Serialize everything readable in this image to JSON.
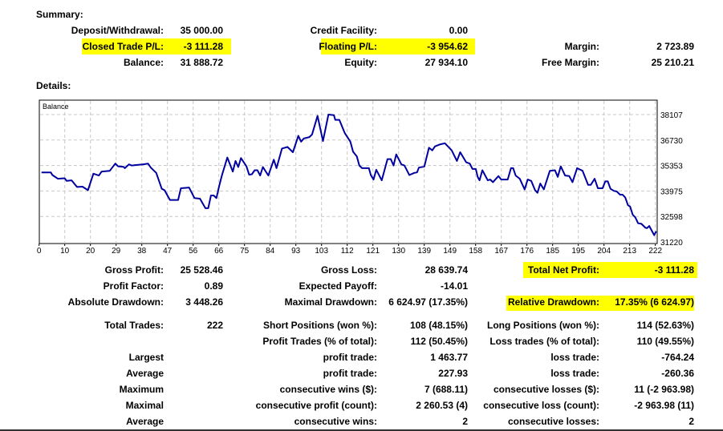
{
  "summary": {
    "title": "Summary:",
    "deposit_label": "Deposit/Withdrawal:",
    "deposit_value": "35 000.00",
    "closed_pl_label": "Closed Trade P/L:",
    "closed_pl_value": "-3 111.28",
    "balance_label": "Balance:",
    "balance_value": "31 888.72",
    "credit_label": "Credit Facility:",
    "credit_value": "0.00",
    "floating_label": "Floating P/L:",
    "floating_value": "-3 954.62",
    "equity_label": "Equity:",
    "equity_value": "27 934.10",
    "margin_label": "Margin:",
    "margin_value": "2 723.89",
    "free_margin_label": "Free Margin:",
    "free_margin_value": "25 210.21"
  },
  "details": {
    "title": "Details:",
    "rows": [
      [
        "Gross Profit:",
        "25 528.46",
        "Gross Loss:",
        "28 639.74",
        "Total Net Profit:",
        "-3 111.28"
      ],
      [
        "Profit Factor:",
        "0.89",
        "Expected Payoff:",
        "-14.01",
        "",
        ""
      ],
      [
        "Absolute Drawdown:",
        "3 448.26",
        "Maximal Drawdown:",
        "6 624.97 (17.35%)",
        "Relative Drawdown:",
        "17.35% (6 624.97)"
      ],
      [
        "Total Trades:",
        "222",
        "Short Positions (won %):",
        "108 (48.15%)",
        "Long Positions (won %):",
        "114 (52.63%)"
      ],
      [
        "",
        "",
        "Profit Trades (% of total):",
        "112 (50.45%)",
        "Loss trades (% of total):",
        "110 (49.55%)"
      ],
      [
        "Largest",
        "",
        "profit trade:",
        "1 463.77",
        "loss trade:",
        "-764.24"
      ],
      [
        "Average",
        "",
        "profit trade:",
        "227.93",
        "loss trade:",
        "-260.36"
      ],
      [
        "Maximum",
        "",
        "consecutive wins ($):",
        "7 (688.11)",
        "consecutive losses ($):",
        "11 (-2 963.98)"
      ],
      [
        "Maximal",
        "",
        "consecutive profit (count):",
        "2 260.53 (4)",
        "consecutive loss (count):",
        "-2 963.98 (11)"
      ],
      [
        "Average",
        "",
        "consecutive wins:",
        "2",
        "consecutive losses:",
        "2"
      ]
    ]
  },
  "colors": {
    "highlight": "#ffff00",
    "line": "#0000a0",
    "grid": "#c8c8c8"
  },
  "chart_data": {
    "type": "line",
    "title": "Balance",
    "xlabel": "",
    "ylabel": "",
    "xlim": [
      0,
      225
    ],
    "ylim": [
      31220,
      38107
    ],
    "grid": true,
    "x_ticks": [
      "0",
      "10",
      "20",
      "29",
      "38",
      "47",
      "56",
      "66",
      "75",
      "84",
      "93",
      "103",
      "112",
      "121",
      "130",
      "139",
      "149",
      "158",
      "167",
      "176",
      "185",
      "195",
      "204",
      "213",
      "222"
    ],
    "y_ticks": [
      "38107",
      "36730",
      "35353",
      "33975",
      "32598",
      "31220"
    ],
    "series": [
      {
        "name": "Balance",
        "points": [
          [
            0,
            34981
          ],
          [
            3.4,
            34981
          ],
          [
            4,
            34838
          ],
          [
            6,
            34637
          ],
          [
            8.5,
            34665
          ],
          [
            9.2,
            34522
          ],
          [
            11,
            34551
          ],
          [
            13,
            34192
          ],
          [
            15,
            34207
          ],
          [
            17,
            34020
          ],
          [
            19,
            34909
          ],
          [
            21,
            34809
          ],
          [
            22,
            35024
          ],
          [
            25,
            35067
          ],
          [
            27,
            35454
          ],
          [
            28,
            35311
          ],
          [
            30,
            35282
          ],
          [
            30.5,
            35210
          ],
          [
            32,
            35411
          ],
          [
            33,
            35354
          ],
          [
            35,
            35383
          ],
          [
            37,
            35411
          ],
          [
            39,
            35454
          ],
          [
            40,
            35239
          ],
          [
            42,
            34952
          ],
          [
            44,
            34092
          ],
          [
            45,
            34020
          ],
          [
            47,
            33489
          ],
          [
            50,
            33489
          ],
          [
            51,
            34120
          ],
          [
            54,
            34163
          ],
          [
            56,
            33590
          ],
          [
            58,
            33561
          ],
          [
            60,
            33045
          ],
          [
            61,
            33045
          ],
          [
            62,
            33733
          ],
          [
            63,
            33733
          ],
          [
            64,
            33590
          ],
          [
            65,
            34235
          ],
          [
            66,
            34809
          ],
          [
            68,
            35784
          ],
          [
            70,
            35024
          ],
          [
            71,
            35597
          ],
          [
            72,
            35268
          ],
          [
            73,
            35755
          ],
          [
            75,
            35311
          ],
          [
            76,
            34852
          ],
          [
            77,
            34880
          ],
          [
            78,
            35096
          ],
          [
            79,
            35096
          ],
          [
            80,
            34809
          ],
          [
            81,
            35268
          ],
          [
            83,
            34809
          ],
          [
            85,
            35669
          ],
          [
            86,
            35210
          ],
          [
            88,
            36271
          ],
          [
            90,
            36357
          ],
          [
            92,
            36071
          ],
          [
            94,
            36960
          ],
          [
            95,
            36644
          ],
          [
            96,
            36816
          ],
          [
            98,
            36888
          ],
          [
            99,
            37031
          ],
          [
            101,
            38035
          ],
          [
            103,
            36673
          ],
          [
            105,
            38107
          ],
          [
            107,
            38078
          ],
          [
            107.5,
            37820
          ],
          [
            109,
            37820
          ],
          [
            111,
            37103
          ],
          [
            113,
            36644
          ],
          [
            114,
            36099
          ],
          [
            115.4,
            35841
          ],
          [
            116.3,
            35354
          ],
          [
            117.3,
            35210
          ],
          [
            119.8,
            35210
          ],
          [
            120.5,
            34838
          ],
          [
            121.5,
            34594
          ],
          [
            122.5,
            35124
          ],
          [
            124.5,
            34551
          ],
          [
            126.6,
            35698
          ],
          [
            127.8,
            35698
          ],
          [
            128.8,
            35354
          ],
          [
            129.8,
            35956
          ],
          [
            131.7,
            35411
          ],
          [
            132.8,
            35354
          ],
          [
            134.6,
            34838
          ],
          [
            136.4,
            34952
          ],
          [
            137.4,
            34981
          ],
          [
            138.1,
            35239
          ],
          [
            140.1,
            35296
          ],
          [
            141.8,
            36315
          ],
          [
            143,
            36171
          ],
          [
            144,
            36386
          ],
          [
            145.7,
            36487
          ],
          [
            147.6,
            36558
          ],
          [
            150.1,
            36171
          ],
          [
            152,
            35597
          ],
          [
            153.2,
            36071
          ],
          [
            155.4,
            35526
          ],
          [
            156.7,
            35454
          ],
          [
            157.7,
            35167
          ],
          [
            158.9,
            35167
          ],
          [
            159.6,
            34737
          ],
          [
            160.3,
            34551
          ],
          [
            161.3,
            35096
          ],
          [
            163.3,
            34551
          ],
          [
            164.2,
            34594
          ],
          [
            165.2,
            34450
          ],
          [
            167.2,
            34780
          ],
          [
            168.2,
            34594
          ],
          [
            170.6,
            34594
          ],
          [
            171.8,
            35210
          ],
          [
            172.6,
            35210
          ],
          [
            173.5,
            34809
          ],
          [
            175,
            34637
          ],
          [
            176.8,
            34063
          ],
          [
            177.9,
            34594
          ],
          [
            179.2,
            34522
          ],
          [
            180.6,
            34020
          ],
          [
            181.5,
            33877
          ],
          [
            182.5,
            34379
          ],
          [
            183.8,
            34063
          ],
          [
            186,
            35067
          ],
          [
            187.9,
            35096
          ],
          [
            188.9,
            34737
          ],
          [
            190,
            35311
          ],
          [
            191.6,
            34809
          ],
          [
            193.1,
            34780
          ],
          [
            194.3,
            34450
          ],
          [
            196,
            35210
          ],
          [
            198,
            35067
          ],
          [
            200,
            34307
          ],
          [
            201,
            34307
          ],
          [
            202.4,
            34637
          ],
          [
            203.6,
            34120
          ],
          [
            205.3,
            34120
          ],
          [
            206.3,
            34493
          ],
          [
            207.2,
            34493
          ],
          [
            208.2,
            34092
          ],
          [
            209.5,
            33977
          ],
          [
            210.5,
            33948
          ],
          [
            211.7,
            33776
          ],
          [
            212.6,
            33776
          ],
          [
            213.6,
            33618
          ],
          [
            214.6,
            33203
          ],
          [
            215.4,
            33131
          ],
          [
            216.3,
            32701
          ],
          [
            217.3,
            32543
          ],
          [
            218.3,
            32228
          ],
          [
            219.5,
            32199
          ],
          [
            221,
            31984
          ],
          [
            221.6,
            31970
          ],
          [
            222.4,
            32084
          ],
          [
            224.2,
            31582
          ],
          [
            224.9,
            31797
          ]
        ]
      }
    ]
  }
}
